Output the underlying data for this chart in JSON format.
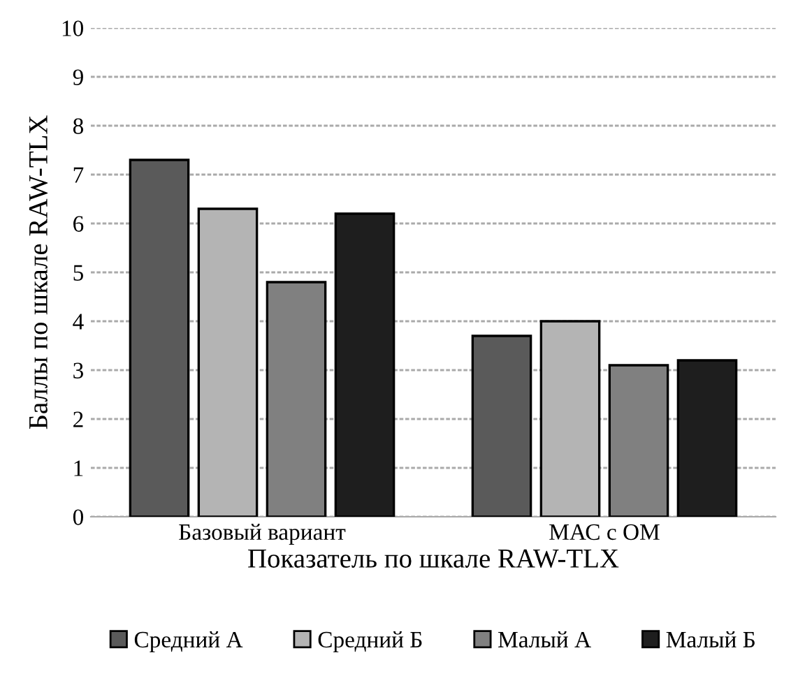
{
  "chart_data": {
    "type": "bar",
    "xlabel": "Показатель по шкале RAW-TLX",
    "ylabel": "Баллы по шкале RAW-TLX",
    "categories": [
      "Базовый вариант",
      "МАС с ОМ"
    ],
    "series": [
      {
        "name": "Средний А",
        "color": "#5a5a5a",
        "values": [
          7.3,
          3.7
        ]
      },
      {
        "name": "Средний Б",
        "color": "#b4b4b4",
        "values": [
          6.3,
          4.0
        ]
      },
      {
        "name": "Малый А",
        "color": "#808080",
        "values": [
          4.8,
          3.1
        ]
      },
      {
        "name": "Малый Б",
        "color": "#1e1e1e",
        "values": [
          6.2,
          3.2
        ]
      }
    ],
    "ylim": [
      0,
      10
    ],
    "yticks": [
      0,
      1,
      2,
      3,
      4,
      5,
      6,
      7,
      8,
      9,
      10
    ],
    "grid": "y",
    "legend": "bottom"
  }
}
